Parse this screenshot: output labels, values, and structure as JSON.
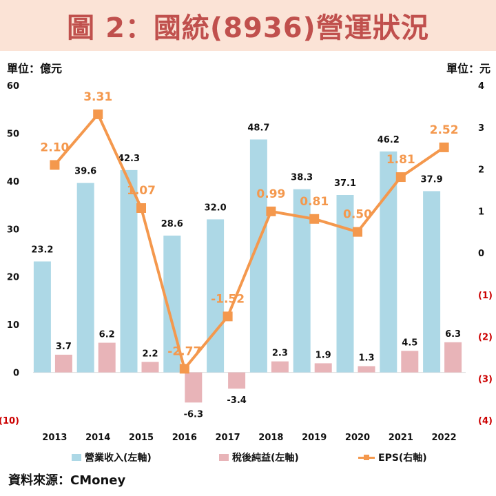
{
  "title": "圖 2：國統(8936)營運狀況",
  "left_unit": "單位：億元",
  "right_unit": "單位：元",
  "source": "資料來源：CMoney",
  "colors": {
    "revenue": "#add8e6",
    "net_income": "#e8b4b8",
    "eps": "#f4984d",
    "eps_label": "#f4984d",
    "banner_bg": "#fbe3d6",
    "title": "#c0504d",
    "negative_tick": "#cc0000"
  },
  "chart_data": {
    "type": "bar",
    "categories": [
      "2013",
      "2014",
      "2015",
      "2016",
      "2017",
      "2018",
      "2019",
      "2020",
      "2021",
      "2022"
    ],
    "series": [
      {
        "name": "營業收入(左軸)",
        "type": "bar",
        "axis": "left",
        "values": [
          23.2,
          39.6,
          42.3,
          28.6,
          32.0,
          48.7,
          38.3,
          37.1,
          46.2,
          37.9
        ],
        "labels": [
          "23.2",
          "39.6",
          "42.3",
          "28.6",
          "32.0",
          "48.7",
          "38.3",
          "37.1",
          "46.2",
          "37.9"
        ]
      },
      {
        "name": "稅後純益(左軸)",
        "type": "bar",
        "axis": "left",
        "values": [
          3.7,
          6.2,
          2.2,
          -6.3,
          -3.4,
          2.3,
          1.9,
          1.3,
          4.5,
          6.3
        ],
        "labels": [
          "3.7",
          "6.2",
          "2.2",
          "-6.3",
          "-3.4",
          "2.3",
          "1.9",
          "1.3",
          "4.5",
          "6.3"
        ]
      },
      {
        "name": "EPS(右軸)",
        "type": "line",
        "axis": "right",
        "values": [
          2.1,
          3.31,
          1.07,
          -2.77,
          -1.52,
          0.99,
          0.81,
          0.5,
          1.81,
          2.52
        ],
        "labels": [
          "2.10",
          "3.31",
          "1.07",
          "-2.77",
          "-1.52",
          "0.99",
          "0.81",
          "0.50",
          "1.81",
          "2.52"
        ]
      }
    ],
    "left_axis": {
      "ylim": [
        -10,
        60
      ],
      "ticks": [
        60,
        50,
        40,
        30,
        20,
        10,
        0,
        -10
      ],
      "tick_labels": [
        "60",
        "50",
        "40",
        "30",
        "20",
        "10",
        "0",
        "(10)"
      ]
    },
    "right_axis": {
      "ylim": [
        -4,
        4
      ],
      "ticks": [
        4,
        3,
        2,
        1,
        0,
        -1,
        -2,
        -3,
        -4
      ],
      "tick_labels": [
        "4",
        "3",
        "2",
        "1",
        "0",
        "(1)",
        "(2)",
        "(3)",
        "(4)"
      ]
    },
    "grid": false,
    "legend_position": "bottom"
  }
}
